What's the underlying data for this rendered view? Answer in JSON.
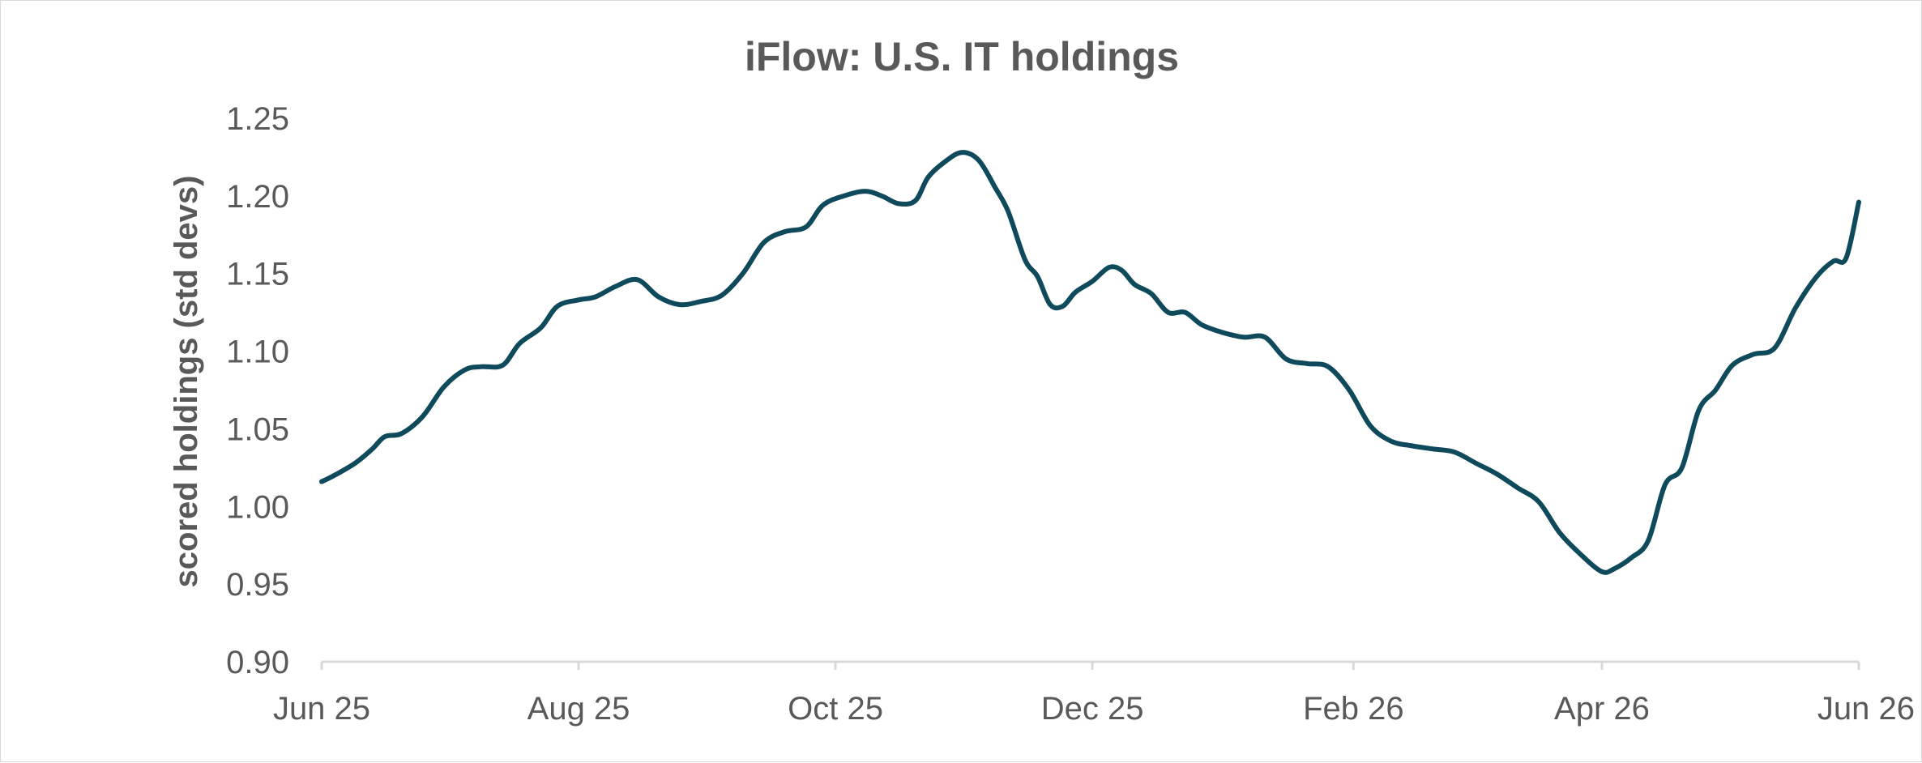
{
  "chart_data": {
    "type": "line",
    "title": "iFlow: U.S. IT holdings",
    "xlabel": "",
    "ylabel": "scored holdings (std devs)",
    "ylim": [
      0.9,
      1.25
    ],
    "yticks": [
      0.9,
      0.95,
      1.0,
      1.05,
      1.1,
      1.15,
      1.2,
      1.25
    ],
    "ytick_labels": [
      "0.90",
      "0.95",
      "1.00",
      "1.05",
      "1.10",
      "1.15",
      "1.20",
      "1.25"
    ],
    "xlim": [
      "2025-06-01",
      "2026-06-01"
    ],
    "xticks": [
      "2025-06-01",
      "2025-08-01",
      "2025-10-01",
      "2025-12-01",
      "2026-02-01",
      "2026-04-01",
      "2026-06-01"
    ],
    "xtick_labels": [
      "Jun 25",
      "Aug 25",
      "Oct 25",
      "Dec 25",
      "Feb 26",
      "Apr 26",
      "Jun 26"
    ],
    "grid": false,
    "legend": "none",
    "line_color": "#0f4a5c",
    "series": [
      {
        "x": [
          "2025-06-01",
          "2025-06-04",
          "2025-06-09",
          "2025-06-13",
          "2025-06-16",
          "2025-06-20",
          "2025-06-25",
          "2025-06-30",
          "2025-07-05",
          "2025-07-09",
          "2025-07-14",
          "2025-07-18",
          "2025-07-23",
          "2025-07-27",
          "2025-08-01",
          "2025-08-05",
          "2025-08-10",
          "2025-08-15",
          "2025-08-20",
          "2025-08-25",
          "2025-08-30",
          "2025-09-04",
          "2025-09-09",
          "2025-09-14",
          "2025-09-19",
          "2025-09-24",
          "2025-09-28",
          "2025-10-03",
          "2025-10-08",
          "2025-10-12",
          "2025-10-16",
          "2025-10-20",
          "2025-10-23",
          "2025-10-27",
          "2025-10-31",
          "2025-11-04",
          "2025-11-08",
          "2025-11-11",
          "2025-11-15",
          "2025-11-18",
          "2025-11-21",
          "2025-11-24",
          "2025-11-27",
          "2025-12-01",
          "2025-12-05",
          "2025-12-08",
          "2025-12-11",
          "2025-12-15",
          "2025-12-19",
          "2025-12-23",
          "2025-12-27",
          "2026-01-01",
          "2026-01-06",
          "2026-01-11",
          "2026-01-16",
          "2026-01-21",
          "2026-01-26",
          "2026-01-31",
          "2026-02-05",
          "2026-02-10",
          "2026-02-15",
          "2026-02-20",
          "2026-02-25",
          "2026-03-02",
          "2026-03-07",
          "2026-03-12",
          "2026-03-17",
          "2026-03-22",
          "2026-03-27",
          "2026-04-01",
          "2026-04-04",
          "2026-04-08",
          "2026-04-12",
          "2026-04-16",
          "2026-04-20",
          "2026-04-24",
          "2026-04-28",
          "2026-05-02",
          "2026-05-07",
          "2026-05-12",
          "2026-05-17",
          "2026-05-22",
          "2026-05-26",
          "2026-05-29",
          "2026-06-01"
        ],
        "y": [
          1.016,
          1.02,
          1.028,
          1.037,
          1.045,
          1.047,
          1.058,
          1.077,
          1.088,
          1.09,
          1.091,
          1.105,
          1.115,
          1.129,
          1.133,
          1.135,
          1.142,
          1.146,
          1.135,
          1.13,
          1.132,
          1.136,
          1.15,
          1.17,
          1.177,
          1.18,
          1.194,
          1.2,
          1.203,
          1.2,
          1.195,
          1.197,
          1.212,
          1.222,
          1.228,
          1.223,
          1.205,
          1.19,
          1.159,
          1.148,
          1.13,
          1.129,
          1.138,
          1.145,
          1.154,
          1.152,
          1.143,
          1.137,
          1.125,
          1.125,
          1.117,
          1.112,
          1.109,
          1.109,
          1.095,
          1.092,
          1.09,
          1.075,
          1.052,
          1.042,
          1.039,
          1.037,
          1.035,
          1.028,
          1.021,
          1.012,
          1.003,
          0.983,
          0.969,
          0.958,
          0.96,
          0.967,
          0.978,
          1.014,
          1.025,
          1.062,
          1.075,
          1.091,
          1.098,
          1.102,
          1.128,
          1.148,
          1.158,
          1.16,
          1.196
        ]
      }
    ]
  }
}
